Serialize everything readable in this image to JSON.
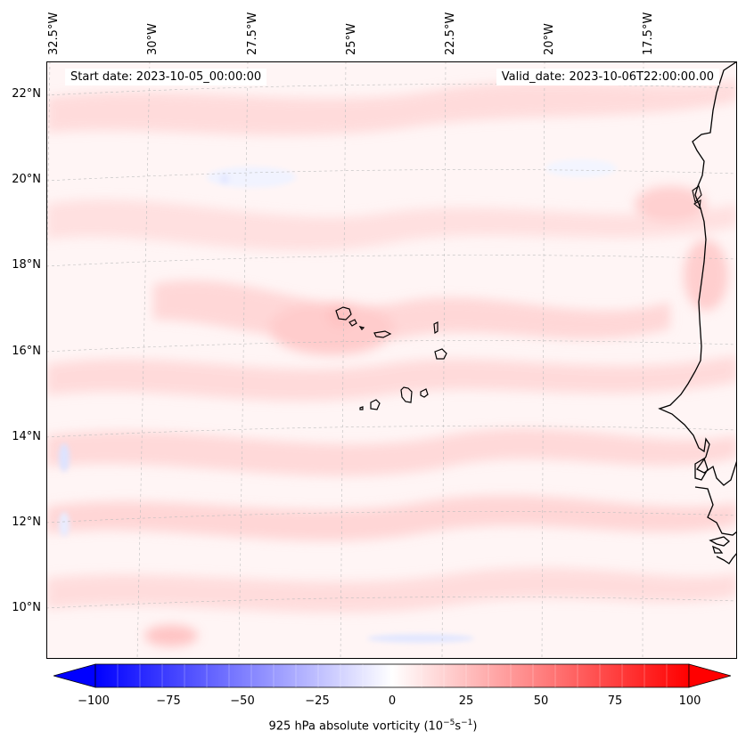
{
  "header": {
    "start_label": "Start date: 2023-10-05_00:00:00",
    "valid_label": "Valid_date: 2023-10-06T22:00:00.00"
  },
  "longitude_labels": [
    "32.5°W",
    "30°W",
    "27.5°W",
    "25°W",
    "22.5°W",
    "20°W",
    "17.5°W"
  ],
  "latitude_labels": [
    "22°N",
    "20°N",
    "18°N",
    "16°N",
    "14°N",
    "12°N",
    "10°N"
  ],
  "map": {
    "field": "925 hPa absolute vorticity",
    "places": [
      "Cape Verde islands",
      "West African coast"
    ]
  },
  "colorbar": {
    "ticks": [
      "−100",
      "−75",
      "−50",
      "−25",
      "0",
      "25",
      "50",
      "75",
      "100"
    ],
    "label_prefix": "925 hPa absolute vorticity (10",
    "label_exp1": "−5",
    "label_mid": "s",
    "label_exp2": "−1",
    "label_suffix": ")",
    "min_color": "#0000ff",
    "mid_color": "#ffffff",
    "max_color": "#ff0000"
  }
}
